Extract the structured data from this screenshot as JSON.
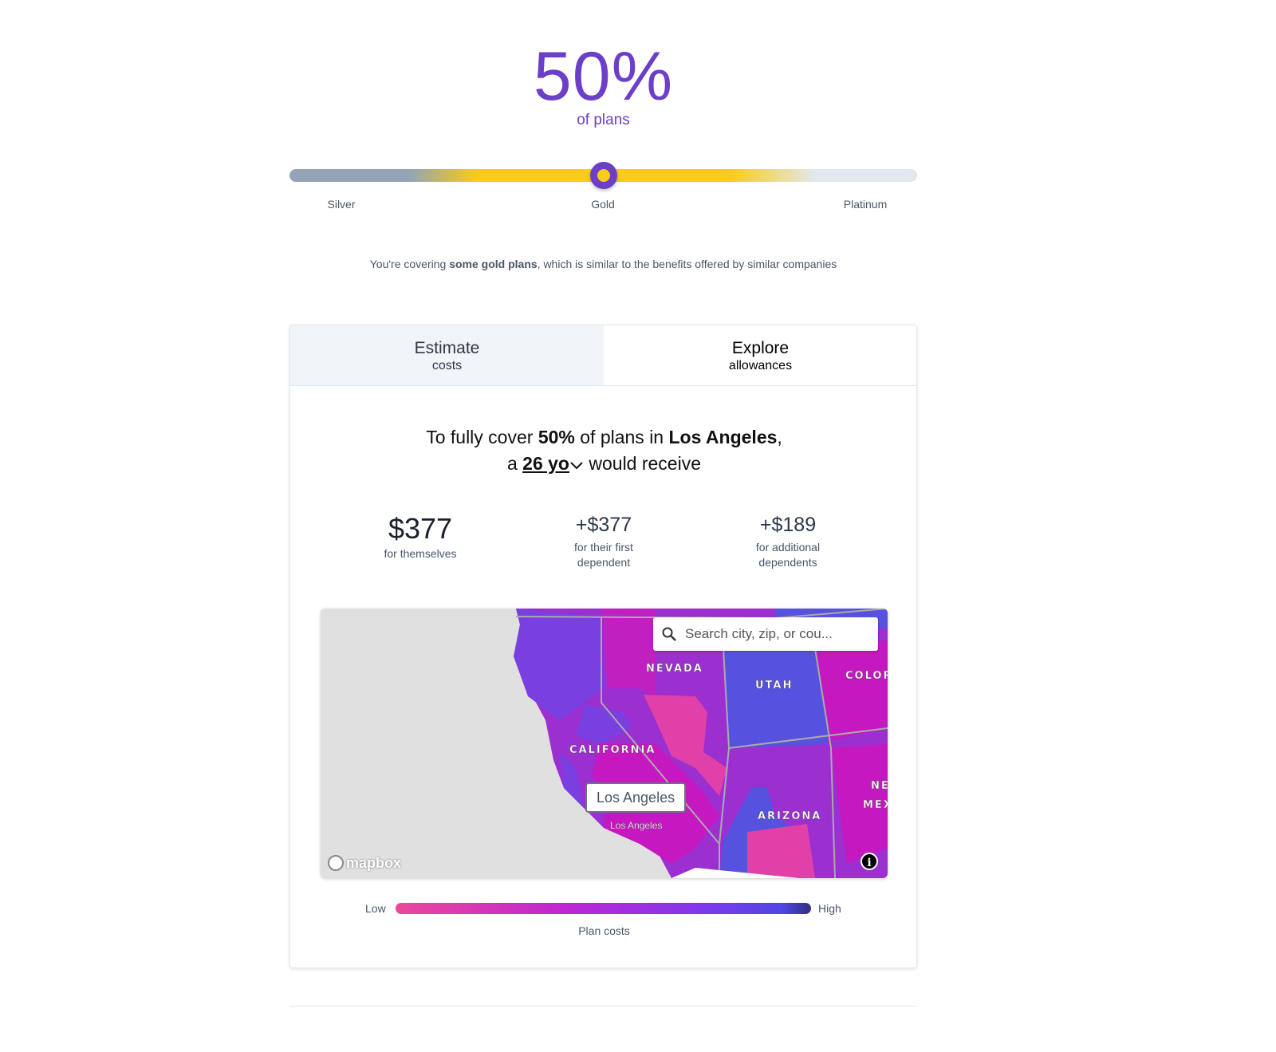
{
  "coverage": {
    "percent": "50%",
    "caption": "of plans",
    "slider_value_percent": 50,
    "ticks": [
      "Silver",
      "Gold",
      "Platinum"
    ],
    "message_pre": "You're covering ",
    "message_bold": "some gold plans",
    "message_post": ", which is similar to the benefits offered by similar companies"
  },
  "tabs": [
    {
      "title": "Estimate",
      "subtitle": "costs",
      "active": true
    },
    {
      "title": "Explore",
      "subtitle": "allowances",
      "active": false
    }
  ],
  "headline": {
    "p1": "To fully cover ",
    "pct": "50%",
    "p2": " of plans in ",
    "city": "Los Angeles",
    "p3": ",",
    "p4": "a ",
    "age": "26 yo",
    "p5": " would receive"
  },
  "stats": [
    {
      "value": "$377",
      "label": "for themselves"
    },
    {
      "value": "+$377",
      "label": "for their first dependent"
    },
    {
      "value": "+$189",
      "label": "for additional dependents"
    }
  ],
  "map": {
    "search_placeholder": "Search city, zip, or cou...",
    "popup": "Los Angeles",
    "city_label": "Los Angeles",
    "states": [
      "NEVADA",
      "UTAH",
      "COLOR",
      "CALIFORNIA",
      "ARIZONA",
      "NE",
      "MEX"
    ],
    "attribution": "mapbox"
  },
  "legend": {
    "low": "Low",
    "high": "High",
    "caption": "Plan costs",
    "colors": [
      "#ec4899",
      "#c026d3",
      "#7c3aed",
      "#4f46e5",
      "#312e81"
    ]
  },
  "colors": {
    "accent": "#6b3fc8",
    "gold": "#facc15",
    "silver": "#94a3b8"
  }
}
